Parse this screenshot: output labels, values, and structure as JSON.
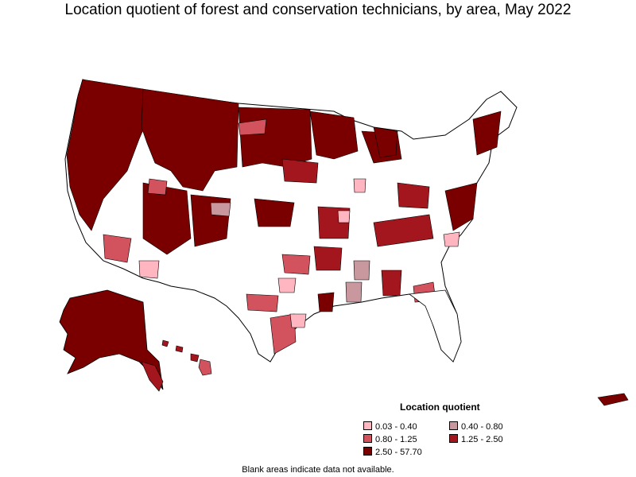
{
  "title": "Location quotient of forest and conservation technicians, by area, May 2022",
  "legend": {
    "title": "Location quotient",
    "items": [
      {
        "label": "0.03 - 0.40",
        "color": "#ffb6c1"
      },
      {
        "label": "0.40 - 0.80",
        "color": "#c9989f"
      },
      {
        "label": "0.80 - 1.25",
        "color": "#d2525e"
      },
      {
        "label": "1.25 - 2.50",
        "color": "#a3161e"
      },
      {
        "label": "2.50 - 57.70",
        "color": "#7a0000"
      }
    ]
  },
  "note": "Blank areas indicate data not available.",
  "no_data_color": "#ffffff"
}
